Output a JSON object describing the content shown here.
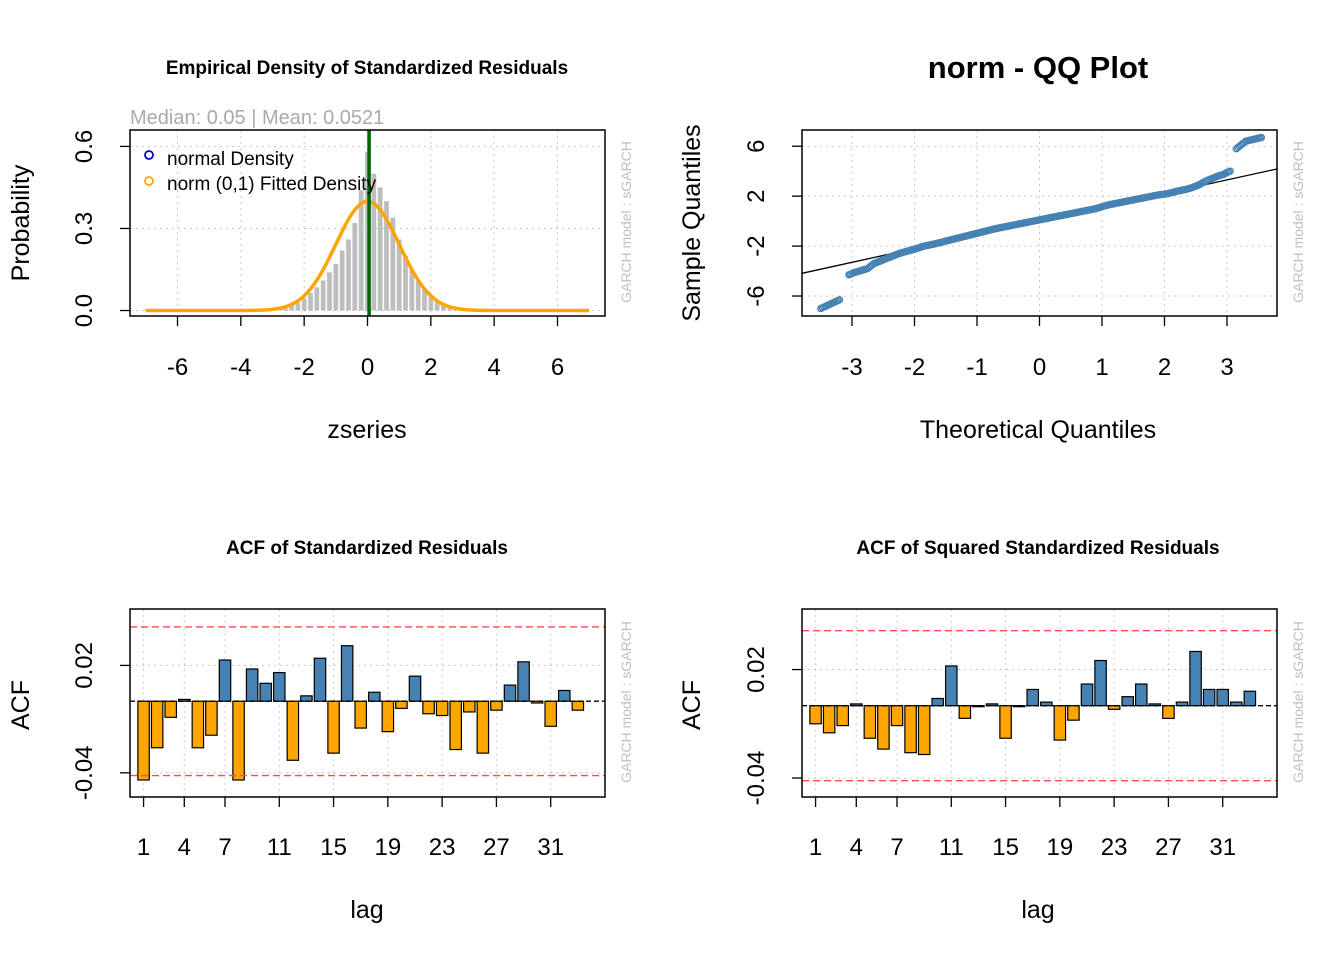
{
  "window_title": "",
  "colors": {
    "positive_bar": "#4682b4",
    "negative_bar": "#ffa500",
    "conf_line": "#ff4d4d",
    "hist_bar": "#bebebe",
    "density_line": "#ffa500",
    "median_line": "#006400",
    "qq_point": "#4682b4",
    "grid": "#c8c8c8"
  },
  "chart_data": [
    {
      "id": "density",
      "type": "bar",
      "title": "Empirical Density of Standardized Residuals",
      "subtitle": "Median:  0.05 | Mean:  0.0521",
      "xlabel": "zseries",
      "ylabel": "Probability",
      "watermark": "GARCH model :  sGARCH",
      "xlim": [
        -7.5,
        7.5
      ],
      "ylim": [
        -0.02,
        0.66
      ],
      "xticks": [
        -6,
        -4,
        -2,
        0,
        2,
        4,
        6
      ],
      "xtick_labels": [
        "-6",
        "-4",
        "-2",
        "0",
        "2",
        "4",
        "6"
      ],
      "yticks": [
        0.0,
        0.3,
        0.6
      ],
      "ytick_labels": [
        "0.0",
        "0.3",
        "0.6"
      ],
      "legend": {
        "position": "top-left",
        "entries": [
          "normal Density",
          "norm (0,1) Fitted Density"
        ]
      },
      "median_line_x": 0.05,
      "histogram": {
        "bin_width": 0.2,
        "x": [
          -7.0,
          -3.6,
          -3.4,
          -3.2,
          -3.0,
          -2.8,
          -2.6,
          -2.4,
          -2.2,
          -2.0,
          -1.8,
          -1.6,
          -1.4,
          -1.2,
          -1.0,
          -0.8,
          -0.6,
          -0.4,
          -0.2,
          0.0,
          0.2,
          0.4,
          0.6,
          0.8,
          1.0,
          1.2,
          1.4,
          1.6,
          1.8,
          2.0,
          2.2,
          2.4,
          2.6,
          2.8,
          3.0,
          3.2,
          3.6,
          6.2,
          6.6
        ],
        "values": [
          0.003,
          0.004,
          0.004,
          0.006,
          0.007,
          0.01,
          0.015,
          0.02,
          0.03,
          0.045,
          0.065,
          0.085,
          0.11,
          0.14,
          0.17,
          0.22,
          0.26,
          0.32,
          0.44,
          0.58,
          0.5,
          0.45,
          0.4,
          0.34,
          0.26,
          0.2,
          0.15,
          0.11,
          0.075,
          0.05,
          0.035,
          0.02,
          0.012,
          0.008,
          0.006,
          0.004,
          0.003,
          0.003,
          0.003
        ]
      },
      "fitted_density": {
        "distribution": "norm",
        "mean": 0,
        "sd": 1,
        "x_range": [
          -7,
          7
        ]
      }
    },
    {
      "id": "qq",
      "type": "scatter",
      "title": "norm - QQ Plot",
      "xlabel": "Theoretical Quantiles",
      "ylabel": "Sample Quantiles",
      "watermark": "GARCH model :  sGARCH",
      "xlim": [
        -3.8,
        3.8
      ],
      "ylim": [
        -7.6,
        7.3
      ],
      "xticks": [
        -3,
        -2,
        -1,
        0,
        1,
        2,
        3
      ],
      "xtick_labels": [
        "-3",
        "-2",
        "-1",
        "0",
        "1",
        "2",
        "3"
      ],
      "yticks": [
        -6,
        -2,
        2,
        6
      ],
      "ytick_labels": [
        "-6",
        "-2",
        "2",
        "6"
      ],
      "reference_line": {
        "intercept": 0.0,
        "slope": 1.1
      },
      "points": {
        "x": [
          -3.5,
          -3.2,
          -3.05,
          -2.95,
          -2.85,
          -2.75,
          -2.65,
          -2.55,
          -2.45,
          -2.35,
          -2.25,
          -2.15,
          -2.0,
          -1.85,
          -1.7,
          -1.5,
          -1.3,
          -1.1,
          -0.9,
          -0.7,
          -0.5,
          -0.3,
          -0.1,
          0.1,
          0.3,
          0.5,
          0.7,
          0.9,
          1.1,
          1.3,
          1.5,
          1.7,
          1.9,
          2.05,
          2.2,
          2.35,
          2.45,
          2.55,
          2.62,
          2.7,
          2.78,
          2.85,
          2.95,
          3.0,
          3.05,
          3.15,
          3.3,
          3.55
        ],
        "y": [
          -7.0,
          -6.3,
          -4.3,
          -4.1,
          -3.95,
          -3.8,
          -3.4,
          -3.2,
          -3.0,
          -2.8,
          -2.6,
          -2.45,
          -2.25,
          -2.0,
          -1.85,
          -1.6,
          -1.35,
          -1.1,
          -0.85,
          -0.6,
          -0.4,
          -0.2,
          0.0,
          0.2,
          0.4,
          0.6,
          0.8,
          1.0,
          1.3,
          1.5,
          1.7,
          1.9,
          2.1,
          2.2,
          2.4,
          2.55,
          2.7,
          2.9,
          3.1,
          3.3,
          3.45,
          3.6,
          3.75,
          3.9,
          4.0,
          5.8,
          6.4,
          6.7
        ]
      }
    },
    {
      "id": "acf",
      "type": "bar",
      "title": "ACF of Standardized Residuals",
      "xlabel": "lag",
      "ylabel": "ACF",
      "watermark": "GARCH model :  sGARCH",
      "xlim": [
        0,
        35
      ],
      "ylim": [
        -0.0535,
        0.0515
      ],
      "xticks": [
        1,
        4,
        7,
        11,
        15,
        19,
        23,
        27,
        31
      ],
      "xtick_labels": [
        "1",
        "4",
        "7",
        "11",
        "15",
        "19",
        "23",
        "27",
        "31"
      ],
      "yticks": [
        -0.04,
        0.02
      ],
      "ytick_labels": [
        "-0.04",
        "0.02"
      ],
      "conf_limit": 0.0415,
      "lags": [
        1,
        2,
        3,
        4,
        5,
        6,
        7,
        8,
        9,
        10,
        11,
        12,
        13,
        14,
        15,
        16,
        17,
        18,
        19,
        20,
        21,
        22,
        23,
        24,
        25,
        26,
        27,
        28,
        29,
        30,
        31,
        32,
        33
      ],
      "values": [
        -0.044,
        -0.026,
        -0.009,
        0.001,
        -0.026,
        -0.019,
        0.023,
        -0.044,
        0.018,
        0.01,
        0.016,
        -0.033,
        0.003,
        0.024,
        -0.029,
        0.031,
        -0.015,
        0.005,
        -0.017,
        -0.004,
        0.014,
        -0.007,
        -0.008,
        -0.027,
        -0.006,
        -0.029,
        -0.005,
        0.009,
        0.022,
        -0.001,
        -0.014,
        0.006,
        -0.005
      ]
    },
    {
      "id": "acf_sq",
      "type": "bar",
      "title": "ACF of Squared Standardized Residuals",
      "xlabel": "lag",
      "ylabel": "ACF",
      "watermark": "GARCH model :  sGARCH",
      "xlim": [
        0,
        35
      ],
      "ylim": [
        -0.0505,
        0.0535
      ],
      "xticks": [
        1,
        4,
        7,
        11,
        15,
        19,
        23,
        27,
        31
      ],
      "xtick_labels": [
        "1",
        "4",
        "7",
        "11",
        "15",
        "19",
        "23",
        "27",
        "31"
      ],
      "yticks": [
        -0.04,
        0.02
      ],
      "ytick_labels": [
        "-0.04",
        "0.02"
      ],
      "conf_limit": 0.0415,
      "lags": [
        1,
        2,
        3,
        4,
        5,
        6,
        7,
        8,
        9,
        10,
        11,
        12,
        13,
        14,
        15,
        16,
        17,
        18,
        19,
        20,
        21,
        22,
        23,
        24,
        25,
        26,
        27,
        28,
        29,
        30,
        31,
        32,
        33
      ],
      "values": [
        -0.01,
        -0.015,
        -0.011,
        0.001,
        -0.018,
        -0.024,
        -0.011,
        -0.026,
        -0.027,
        0.004,
        0.022,
        -0.007,
        0.0,
        0.001,
        -0.018,
        0.0,
        0.009,
        0.002,
        -0.019,
        -0.008,
        0.012,
        0.025,
        -0.002,
        0.005,
        0.012,
        0.001,
        -0.007,
        0.002,
        0.03,
        0.009,
        0.009,
        0.002,
        0.008
      ]
    }
  ]
}
